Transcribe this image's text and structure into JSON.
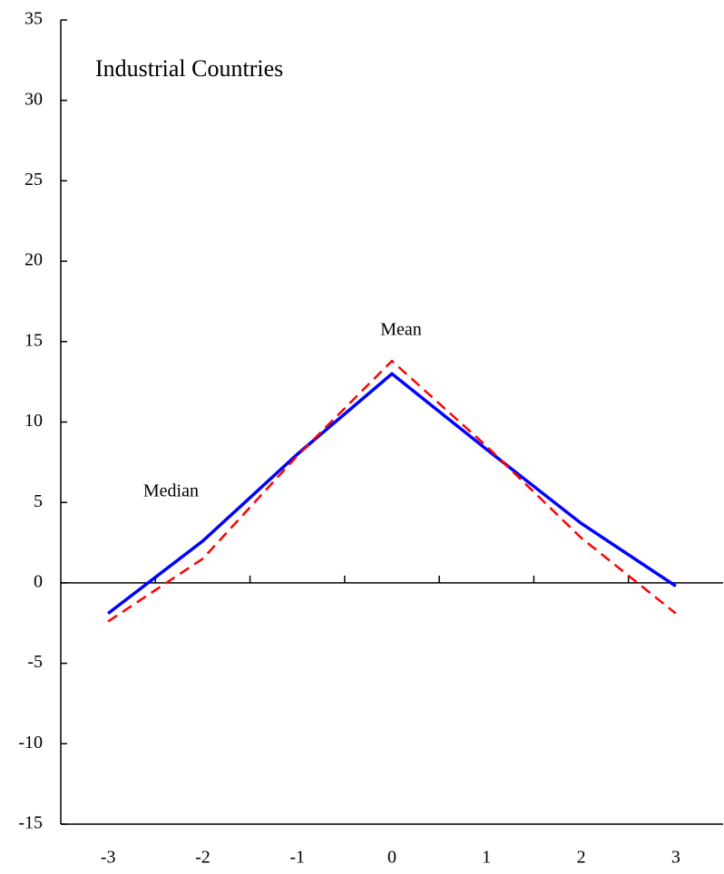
{
  "chart_data": {
    "type": "line",
    "title": "Industrial Countries",
    "categories": [
      "-3",
      "-2",
      "-1",
      "0",
      "1",
      "2",
      "3"
    ],
    "series": [
      {
        "name": "Median",
        "color": "#0000ff",
        "dash": false,
        "values": [
          -1.9,
          2.6,
          8.0,
          13.0,
          8.3,
          3.7,
          -0.2
        ]
      },
      {
        "name": "Mean",
        "color": "#ff0000",
        "dash": true,
        "values": [
          -2.4,
          1.5,
          7.9,
          13.8,
          8.5,
          2.8,
          -1.9
        ]
      }
    ],
    "ylim": [
      -15,
      35
    ],
    "yticks": [
      -15,
      -10,
      -5,
      0,
      5,
      10,
      15,
      20,
      25,
      30,
      35
    ]
  }
}
